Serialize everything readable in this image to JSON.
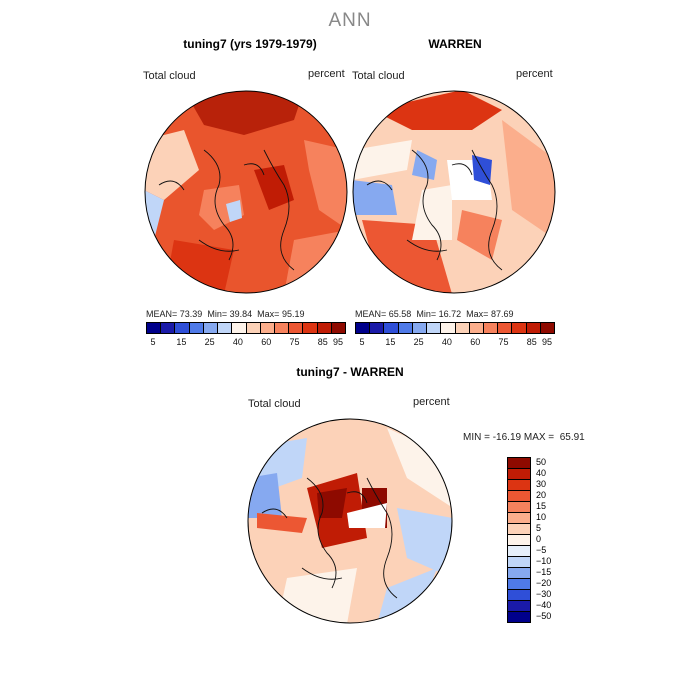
{
  "season": "ANN",
  "panels": [
    {
      "title": "tuning7 (yrs 1979-1979)",
      "variable_label": "Total cloud",
      "units_label": "percent",
      "stats": {
        "mean_label": "MEAN=",
        "mean": "73.39",
        "min_label": "Min=",
        "min": "39.84",
        "max_label": "Max=",
        "max": "95.19"
      }
    },
    {
      "title": "WARREN",
      "variable_label": "Total cloud",
      "units_label": "percent",
      "stats": {
        "mean_label": "MEAN=",
        "mean": "65.58",
        "min_label": "Min=",
        "min": "16.72",
        "max_label": "Max=",
        "max": "87.69"
      }
    }
  ],
  "abs_colorbar": {
    "colors": [
      "#00008b",
      "#1a1aa8",
      "#2f4fd8",
      "#4f7ae8",
      "#86a9f0",
      "#c0d6f8",
      "#fdf3ea",
      "#fcd2b8",
      "#fbae8c",
      "#f6825d",
      "#ec5733",
      "#dc3412",
      "#c01c05",
      "#8e0a00"
    ],
    "tick_labels": [
      "5",
      "15",
      "25",
      "40",
      "60",
      "75",
      "85",
      "95"
    ]
  },
  "diff_panel": {
    "title": "tuning7 - WARREN",
    "variable_label": "Total cloud",
    "units_label": "percent",
    "minmax_text": "MIN = -16.19 MAX =  65.91"
  },
  "diff_colorbar": {
    "colors": [
      "#8e0a00",
      "#c01c05",
      "#dc3412",
      "#ec5733",
      "#f6825d",
      "#fbae8c",
      "#fcd2b8",
      "#fdf3ea",
      "#e6effa",
      "#c0d6f8",
      "#86a9f0",
      "#4f7ae8",
      "#2f4fd8",
      "#1a1aa8",
      "#00008b"
    ],
    "tick_labels": [
      "50",
      "40",
      "30",
      "20",
      "15",
      "10",
      "5",
      "0",
      "−5",
      "−10",
      "−15",
      "−20",
      "−30",
      "−40",
      "−50"
    ]
  }
}
